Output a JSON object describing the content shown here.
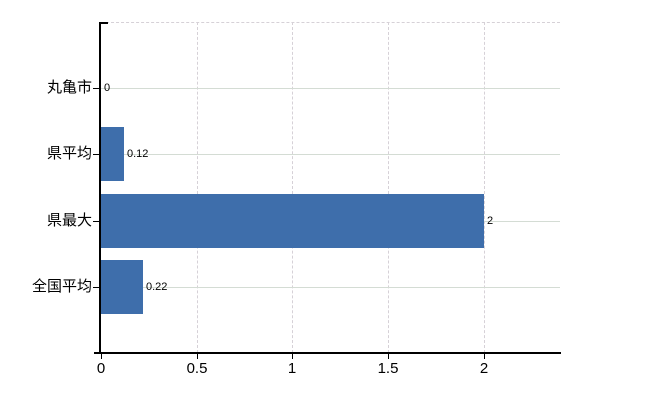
{
  "chart_data": {
    "type": "bar",
    "orientation": "horizontal",
    "title": "",
    "categories": [
      "丸亀市",
      "県平均",
      "県最大",
      "全国平均"
    ],
    "values": [
      0,
      0.12,
      2,
      0.22
    ],
    "value_labels": [
      "0",
      "0.12",
      "2",
      "0.22"
    ],
    "x_tick_values": [
      0,
      0.5,
      1,
      1.5,
      2
    ],
    "x_tick_labels": [
      "0",
      "0.5",
      "1",
      "1.5",
      "2"
    ],
    "xlim": [
      0,
      2.4
    ],
    "grid": true,
    "legend": false,
    "colors": {
      "bar": "#3e6eab",
      "axis": "#000000",
      "h_gridline": "#d4dcd4",
      "v_gridline": "#d6d1d7",
      "text": "#000000"
    }
  }
}
